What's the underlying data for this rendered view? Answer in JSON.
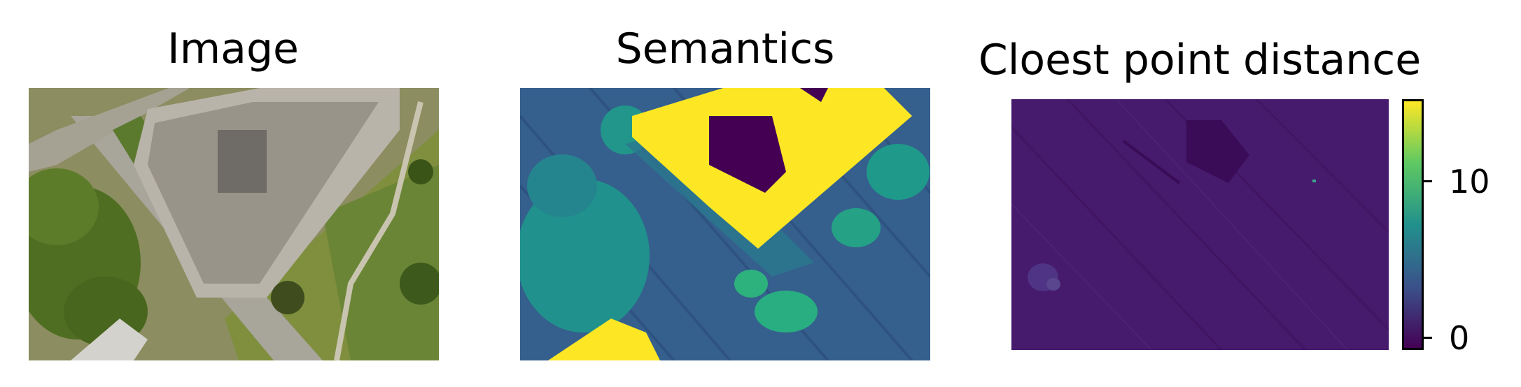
{
  "panels": [
    {
      "title": "Image",
      "content": "aerial orthophoto"
    },
    {
      "title": "Semantics",
      "content": "semantic label map"
    },
    {
      "title": "Cloest point distance",
      "content": "distance map"
    }
  ],
  "colorbar": {
    "colormap": "viridis",
    "ticks": [
      {
        "value": 10,
        "label": "10"
      },
      {
        "value": 0,
        "label": "0"
      }
    ],
    "range": [
      -0.5,
      14.5
    ],
    "colors": [
      "#440154",
      "#3b528b",
      "#21918c",
      "#5ec962",
      "#fde725"
    ]
  }
}
